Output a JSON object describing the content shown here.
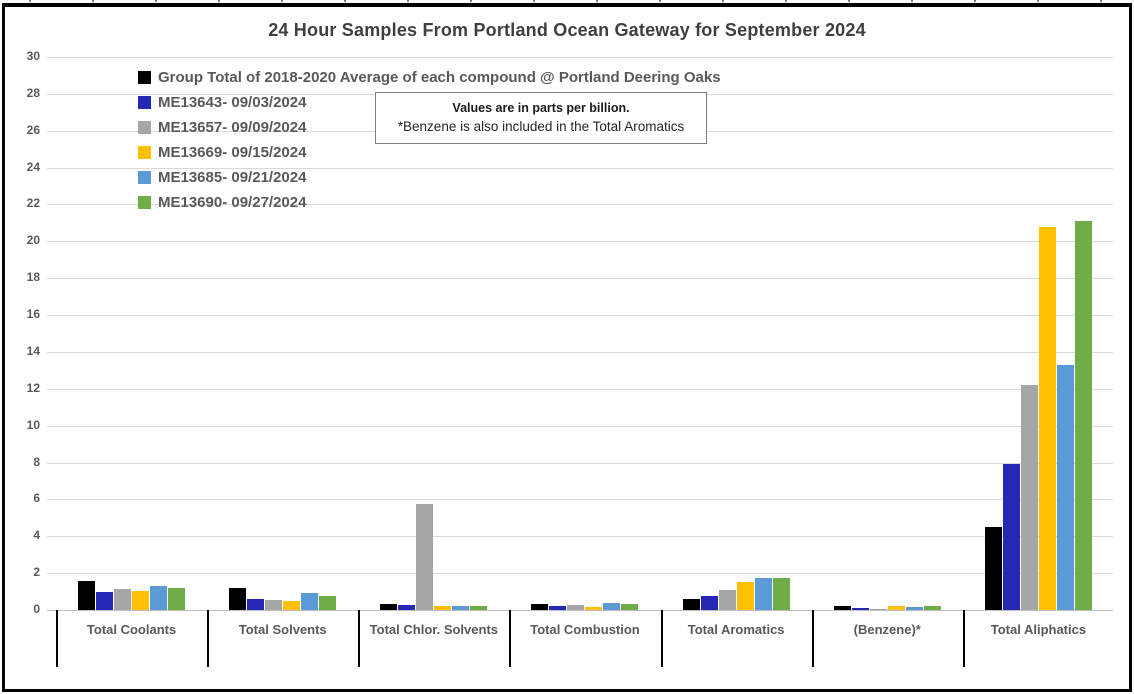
{
  "title": "24 Hour Samples From Portland Ocean Gateway for September 2024",
  "note_box": {
    "line1": "Values are in parts per billion.",
    "line2": "*Benzene is also included in the Total Aromatics"
  },
  "chart_data": {
    "type": "bar",
    "title": "24 Hour Samples From Portland Ocean Gateway for September 2024",
    "values_unit": "parts per billion",
    "categories": [
      "Total Coolants",
      "Total Solvents",
      "Total Chlor. Solvents",
      "Total Combustion",
      "Total Aromatics",
      "(Benzene)*",
      "Total Aliphatics"
    ],
    "series": [
      {
        "name": "Group Total of 2018-2020 Average of each compound @ Portland Deering Oaks",
        "color": "#000000",
        "values": [
          1.6,
          1.2,
          0.35,
          0.3,
          0.6,
          0.2,
          4.5
        ]
      },
      {
        "name": "ME13643- 09/03/2024",
        "color": "#2428b4",
        "values": [
          1.0,
          0.6,
          0.25,
          0.2,
          0.75,
          0.1,
          7.9
        ]
      },
      {
        "name": "ME13657- 09/09/2024",
        "color": "#a6a6a6",
        "values": [
          1.15,
          0.55,
          5.75,
          0.25,
          1.1,
          0.08,
          12.2
        ]
      },
      {
        "name": "ME13669- 09/15/2024",
        "color": "#ffc000",
        "values": [
          1.05,
          0.5,
          0.2,
          0.15,
          1.5,
          0.22,
          20.8
        ]
      },
      {
        "name": "ME13685- 09/21/2024",
        "color": "#5b9bd5",
        "values": [
          1.3,
          0.9,
          0.2,
          0.4,
          1.75,
          0.15,
          13.3
        ]
      },
      {
        "name": "ME13690- 09/27/2024",
        "color": "#70ad47",
        "values": [
          1.2,
          0.75,
          0.2,
          0.3,
          1.75,
          0.2,
          21.1
        ]
      }
    ],
    "xlabel": "",
    "ylabel": "",
    "ylim": [
      0,
      30
    ],
    "ytick_step": 2,
    "grid": true,
    "legend_position": "top-left"
  }
}
